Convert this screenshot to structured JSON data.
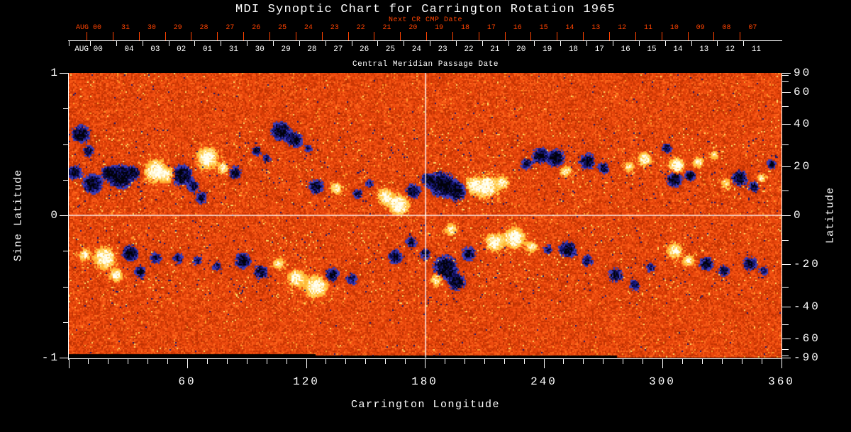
{
  "title": "MDI Synoptic Chart for Carrington Rotation 1965",
  "colors": {
    "background": "#000000",
    "axis_white": "#FFFFFF",
    "axis_red": "#FF4300"
  },
  "axes": {
    "top_red": {
      "label": "Next CR CMP Date",
      "month_label": "AUG 00",
      "tick_labels": [
        "31",
        "30",
        "29",
        "28",
        "27",
        "26",
        "25",
        "24",
        "23",
        "22",
        "21",
        "20",
        "19",
        "18",
        "17",
        "16",
        "15",
        "14",
        "13",
        "12",
        "11",
        "10",
        "09",
        "08",
        "07"
      ]
    },
    "top_white": {
      "axis_title": "Central Meridian Passage Date",
      "month_label": "AUG 00",
      "tick_labels": [
        "04",
        "03",
        "02",
        "01",
        "31",
        "30",
        "29",
        "28",
        "27",
        "26",
        "25",
        "24",
        "23",
        "22",
        "21",
        "20",
        "19",
        "18",
        "17",
        "16",
        "15",
        "14",
        "13",
        "12",
        "11"
      ]
    },
    "left": {
      "title": "Sine Latitude",
      "tick_values": [
        1,
        0,
        -1
      ],
      "tick_labels": [
        "1",
        "0",
        "-1"
      ],
      "minor_values": [
        0.75,
        0.5,
        0.25,
        -0.25,
        -0.5,
        -0.75
      ]
    },
    "right": {
      "title": "Latitude",
      "tick_values": [
        90,
        60,
        40,
        20,
        0,
        -20,
        -40,
        -60,
        -90
      ],
      "tick_labels": [
        "90",
        "60",
        "40",
        "20",
        "0",
        "-20",
        "-40",
        "-60",
        "-90"
      ],
      "minor_values": [
        80,
        70,
        50,
        30,
        10,
        -10,
        -30,
        -50,
        -70,
        -80
      ]
    },
    "bottom": {
      "title": "Carrington Longitude",
      "tick_values": [
        60,
        120,
        180,
        240,
        300,
        360
      ],
      "tick_labels": [
        "60",
        "120",
        "180",
        "240",
        "300",
        "360"
      ],
      "minor_step": 10
    }
  },
  "chart_data": {
    "type": "heatmap",
    "title": "MDI Synoptic Chart for Carrington Rotation 1965",
    "xlabel": "Carrington Longitude",
    "ylabel_left": "Sine Latitude",
    "ylabel_right": "Latitude",
    "xlim": [
      0,
      360
    ],
    "ylim_sine": [
      -1,
      1
    ],
    "crosshair": {
      "longitude": 180,
      "sine_latitude": 0
    },
    "south_polar_gap": {
      "longitude_range": [
        0,
        277
      ]
    },
    "palette": {
      "background": [
        "#BE3203",
        "#D23A05",
        "#E4430A",
        "#EF4D10",
        "#F95A16",
        "#FF6D1F",
        "#FFA12E"
      ],
      "background_weights": [
        0.15,
        0.34,
        0.58,
        0.78,
        0.92,
        0.985,
        1.0
      ],
      "positive_core": [
        "#FFFFF4",
        "#FFF3C8"
      ],
      "positive_mid": [
        "#FFE08A",
        "#FFD257"
      ],
      "positive_edge": "#FFBA38",
      "negative_core": [
        "#02020C",
        "#10104E"
      ],
      "negative_mid": [
        "#1A1A80",
        "#0B0B46"
      ],
      "negative_edge": "#3C3CB4",
      "fleck_dark": "#15156E",
      "fleck_bright": "#FFDE66"
    },
    "activity_belt_sine_lat": [
      0.06,
      0.62
    ],
    "active_regions": [
      [
        6,
        0.57,
        13,
        -1,
        0.9
      ],
      [
        10,
        0.45,
        9,
        -1,
        0.6
      ],
      [
        3,
        0.3,
        11,
        -1,
        0.8
      ],
      [
        12,
        0.22,
        14,
        -1,
        1.0
      ],
      [
        20,
        0.3,
        10,
        -1,
        0.8
      ],
      [
        26,
        0.27,
        17,
        -1,
        1.0
      ],
      [
        33,
        0.3,
        10,
        -1,
        0.7
      ],
      [
        44,
        0.31,
        16,
        1,
        1.0
      ],
      [
        50,
        0.28,
        10,
        1,
        0.7
      ],
      [
        57,
        0.28,
        15,
        -1,
        1.0
      ],
      [
        63,
        0.2,
        9,
        -1,
        0.6
      ],
      [
        67,
        0.12,
        9,
        -1,
        0.6
      ],
      [
        70,
        0.4,
        15,
        1,
        1.0
      ],
      [
        78,
        0.33,
        9,
        1,
        0.7
      ],
      [
        84,
        0.3,
        10,
        -1,
        0.7
      ],
      [
        95,
        0.45,
        8,
        -1,
        0.6
      ],
      [
        100,
        0.4,
        7,
        -1,
        0.5
      ],
      [
        107,
        0.59,
        14,
        -1,
        0.9
      ],
      [
        114,
        0.53,
        12,
        -1,
        0.8
      ],
      [
        121,
        0.47,
        7,
        -1,
        0.5
      ],
      [
        125,
        0.2,
        11,
        -1,
        0.8
      ],
      [
        135,
        0.19,
        9,
        1,
        0.7
      ],
      [
        146,
        0.15,
        8,
        -1,
        0.6
      ],
      [
        152,
        0.22,
        7,
        -1,
        0.5
      ],
      [
        160,
        0.13,
        12,
        1,
        0.9
      ],
      [
        167,
        0.07,
        14,
        1,
        1.0
      ],
      [
        174,
        0.17,
        11,
        -1,
        0.8
      ],
      [
        181,
        0.25,
        9,
        -1,
        0.7
      ],
      [
        188,
        0.22,
        18,
        -1,
        1.0
      ],
      [
        196,
        0.17,
        14,
        -1,
        0.9
      ],
      [
        204,
        0.21,
        12,
        1,
        0.8
      ],
      [
        211,
        0.2,
        16,
        1,
        1.0
      ],
      [
        219,
        0.23,
        10,
        1,
        0.7
      ],
      [
        231,
        0.36,
        9,
        -1,
        0.6
      ],
      [
        238,
        0.42,
        12,
        -1,
        0.8
      ],
      [
        246,
        0.4,
        13,
        -1,
        0.9
      ],
      [
        251,
        0.31,
        9,
        1,
        0.6
      ],
      [
        262,
        0.38,
        12,
        -1,
        0.8
      ],
      [
        270,
        0.33,
        9,
        -1,
        0.6
      ],
      [
        283,
        0.34,
        8,
        1,
        0.6
      ],
      [
        291,
        0.39,
        10,
        1,
        0.8
      ],
      [
        302,
        0.47,
        8,
        -1,
        0.7
      ],
      [
        307,
        0.35,
        11,
        1,
        1.0
      ],
      [
        306,
        0.25,
        11,
        -1,
        1.0
      ],
      [
        314,
        0.28,
        8,
        -1,
        0.8
      ],
      [
        318,
        0.37,
        8,
        1,
        0.7
      ],
      [
        326,
        0.42,
        7,
        1,
        0.5
      ],
      [
        332,
        0.22,
        8,
        1,
        0.6
      ],
      [
        339,
        0.26,
        11,
        -1,
        0.9
      ],
      [
        346,
        0.2,
        8,
        -1,
        0.7
      ],
      [
        350,
        0.26,
        7,
        1,
        0.6
      ],
      [
        355,
        0.36,
        8,
        -1,
        0.6
      ],
      [
        8,
        -0.28,
        9,
        1,
        0.6
      ],
      [
        18,
        -0.3,
        15,
        1,
        1.0
      ],
      [
        24,
        -0.42,
        10,
        1,
        0.7
      ],
      [
        31,
        -0.27,
        12,
        -1,
        0.9
      ],
      [
        36,
        -0.4,
        9,
        -1,
        0.7
      ],
      [
        44,
        -0.3,
        9,
        -1,
        0.6
      ],
      [
        55,
        -0.3,
        9,
        -1,
        0.6
      ],
      [
        65,
        -0.32,
        8,
        -1,
        0.5
      ],
      [
        75,
        -0.36,
        8,
        -1,
        0.5
      ],
      [
        88,
        -0.32,
        12,
        -1,
        0.8
      ],
      [
        97,
        -0.4,
        11,
        -1,
        0.7
      ],
      [
        106,
        -0.34,
        9,
        1,
        0.6
      ],
      [
        115,
        -0.44,
        13,
        1,
        0.8
      ],
      [
        125,
        -0.5,
        16,
        1,
        1.0
      ],
      [
        133,
        -0.42,
        11,
        -1,
        0.7
      ],
      [
        143,
        -0.45,
        9,
        -1,
        0.6
      ],
      [
        165,
        -0.29,
        11,
        -1,
        0.7
      ],
      [
        173,
        -0.19,
        9,
        -1,
        0.6
      ],
      [
        180,
        -0.27,
        9,
        -1,
        0.6
      ],
      [
        186,
        -0.45,
        10,
        1,
        0.7
      ],
      [
        190,
        -0.37,
        17,
        -1,
        1.0
      ],
      [
        196,
        -0.47,
        13,
        -1,
        0.8
      ],
      [
        202,
        -0.27,
        11,
        -1,
        0.7
      ],
      [
        193,
        -0.1,
        9,
        1,
        0.7
      ],
      [
        215,
        -0.19,
        13,
        1,
        0.9
      ],
      [
        225,
        -0.16,
        15,
        1,
        1.0
      ],
      [
        234,
        -0.22,
        9,
        1,
        0.6
      ],
      [
        242,
        -0.24,
        8,
        -1,
        0.5
      ],
      [
        252,
        -0.24,
        13,
        -1,
        0.8
      ],
      [
        262,
        -0.32,
        9,
        -1,
        0.6
      ],
      [
        276,
        -0.42,
        11,
        -1,
        0.7
      ],
      [
        286,
        -0.49,
        9,
        -1,
        0.6
      ],
      [
        294,
        -0.37,
        8,
        -1,
        0.5
      ],
      [
        306,
        -0.25,
        11,
        1,
        0.8
      ],
      [
        313,
        -0.32,
        9,
        1,
        0.6
      ],
      [
        322,
        -0.34,
        11,
        -1,
        0.7
      ],
      [
        331,
        -0.39,
        9,
        -1,
        0.6
      ],
      [
        344,
        -0.34,
        11,
        -1,
        0.7
      ],
      [
        351,
        -0.39,
        8,
        -1,
        0.5
      ]
    ]
  }
}
